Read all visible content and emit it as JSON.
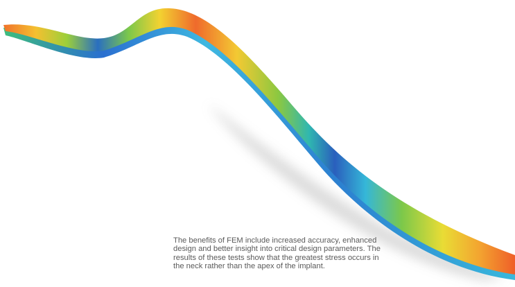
{
  "caption": {
    "lines": [
      "The benefits of FEM include increased accuracy, enhanced",
      "design and better insight into critical design parameters. The",
      "results of these tests show that the greatest stress occurs in",
      "the neck rather than the apex of the implant."
    ]
  }
}
